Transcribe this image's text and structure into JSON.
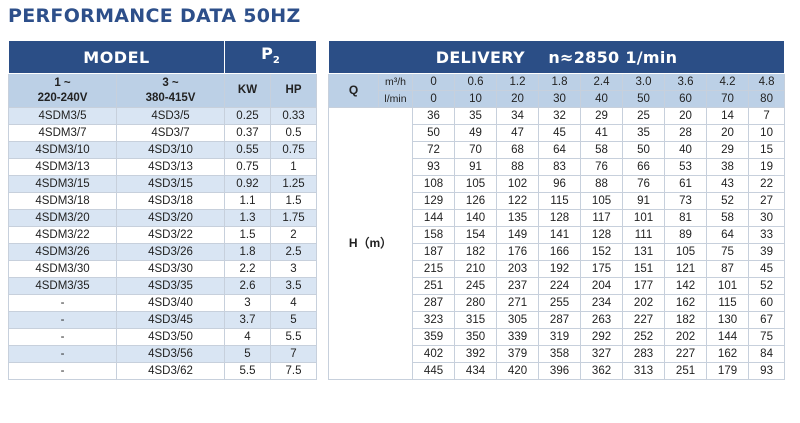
{
  "title": "PERFORMANCE DATA 50HZ",
  "header": {
    "model": "MODEL",
    "p2": "P",
    "p2_sub": "2",
    "delivery": "DELIVERY",
    "speed": "n≈2850 1/min"
  },
  "subheader": {
    "col1": "1 ~\n220-240V",
    "col1_line1": "1 ~",
    "col1_line2": "220-240V",
    "col2_line1": "3 ~",
    "col2_line2": "380-415V",
    "kw": "KW",
    "hp": "HP",
    "q": "Q",
    "unit_m3h": "m³/h",
    "unit_lmin": "l/min"
  },
  "q_m3h": [
    "0",
    "0.6",
    "1.2",
    "1.8",
    "2.4",
    "3.0",
    "3.6",
    "4.2",
    "4.8"
  ],
  "q_lmin": [
    "0",
    "10",
    "20",
    "30",
    "40",
    "50",
    "60",
    "70",
    "80"
  ],
  "h_label": "H（m）",
  "rows": [
    {
      "m1": "4SDM3/5",
      "m3": "4SD3/5",
      "kw": "0.25",
      "hp": "0.33",
      "h": [
        "36",
        "35",
        "34",
        "32",
        "29",
        "25",
        "20",
        "14",
        "7"
      ]
    },
    {
      "m1": "4SDM3/7",
      "m3": "4SD3/7",
      "kw": "0.37",
      "hp": "0.5",
      "h": [
        "50",
        "49",
        "47",
        "45",
        "41",
        "35",
        "28",
        "20",
        "10"
      ]
    },
    {
      "m1": "4SDM3/10",
      "m3": "4SD3/10",
      "kw": "0.55",
      "hp": "0.75",
      "h": [
        "72",
        "70",
        "68",
        "64",
        "58",
        "50",
        "40",
        "29",
        "15"
      ]
    },
    {
      "m1": "4SDM3/13",
      "m3": "4SD3/13",
      "kw": "0.75",
      "hp": "1",
      "h": [
        "93",
        "91",
        "88",
        "83",
        "76",
        "66",
        "53",
        "38",
        "19"
      ]
    },
    {
      "m1": "4SDM3/15",
      "m3": "4SD3/15",
      "kw": "0.92",
      "hp": "1.25",
      "h": [
        "108",
        "105",
        "102",
        "96",
        "88",
        "76",
        "61",
        "43",
        "22"
      ]
    },
    {
      "m1": "4SDM3/18",
      "m3": "4SD3/18",
      "kw": "1.1",
      "hp": "1.5",
      "h": [
        "129",
        "126",
        "122",
        "115",
        "105",
        "91",
        "73",
        "52",
        "27"
      ]
    },
    {
      "m1": "4SDM3/20",
      "m3": "4SD3/20",
      "kw": "1.3",
      "hp": "1.75",
      "h": [
        "144",
        "140",
        "135",
        "128",
        "117",
        "101",
        "81",
        "58",
        "30"
      ]
    },
    {
      "m1": "4SDM3/22",
      "m3": "4SD3/22",
      "kw": "1.5",
      "hp": "2",
      "h": [
        "158",
        "154",
        "149",
        "141",
        "128",
        "111",
        "89",
        "64",
        "33"
      ]
    },
    {
      "m1": "4SDM3/26",
      "m3": "4SD3/26",
      "kw": "1.8",
      "hp": "2.5",
      "h": [
        "187",
        "182",
        "176",
        "166",
        "152",
        "131",
        "105",
        "75",
        "39"
      ]
    },
    {
      "m1": "4SDM3/30",
      "m3": "4SD3/30",
      "kw": "2.2",
      "hp": "3",
      "h": [
        "215",
        "210",
        "203",
        "192",
        "175",
        "151",
        "121",
        "87",
        "45"
      ]
    },
    {
      "m1": "4SDM3/35",
      "m3": "4SD3/35",
      "kw": "2.6",
      "hp": "3.5",
      "h": [
        "251",
        "245",
        "237",
        "224",
        "204",
        "177",
        "142",
        "101",
        "52"
      ]
    },
    {
      "m1": "-",
      "m3": "4SD3/40",
      "kw": "3",
      "hp": "4",
      "h": [
        "287",
        "280",
        "271",
        "255",
        "234",
        "202",
        "162",
        "115",
        "60"
      ]
    },
    {
      "m1": "-",
      "m3": "4SD3/45",
      "kw": "3.7",
      "hp": "5",
      "h": [
        "323",
        "315",
        "305",
        "287",
        "263",
        "227",
        "182",
        "130",
        "67"
      ]
    },
    {
      "m1": "-",
      "m3": "4SD3/50",
      "kw": "4",
      "hp": "5.5",
      "h": [
        "359",
        "350",
        "339",
        "319",
        "292",
        "252",
        "202",
        "144",
        "75"
      ]
    },
    {
      "m1": "-",
      "m3": "4SD3/56",
      "kw": "5",
      "hp": "7",
      "h": [
        "402",
        "392",
        "379",
        "358",
        "327",
        "283",
        "227",
        "162",
        "84"
      ]
    },
    {
      "m1": "-",
      "m3": "4SD3/62",
      "kw": "5.5",
      "hp": "7.5",
      "h": [
        "445",
        "434",
        "420",
        "396",
        "362",
        "313",
        "251",
        "179",
        "93"
      ]
    }
  ]
}
